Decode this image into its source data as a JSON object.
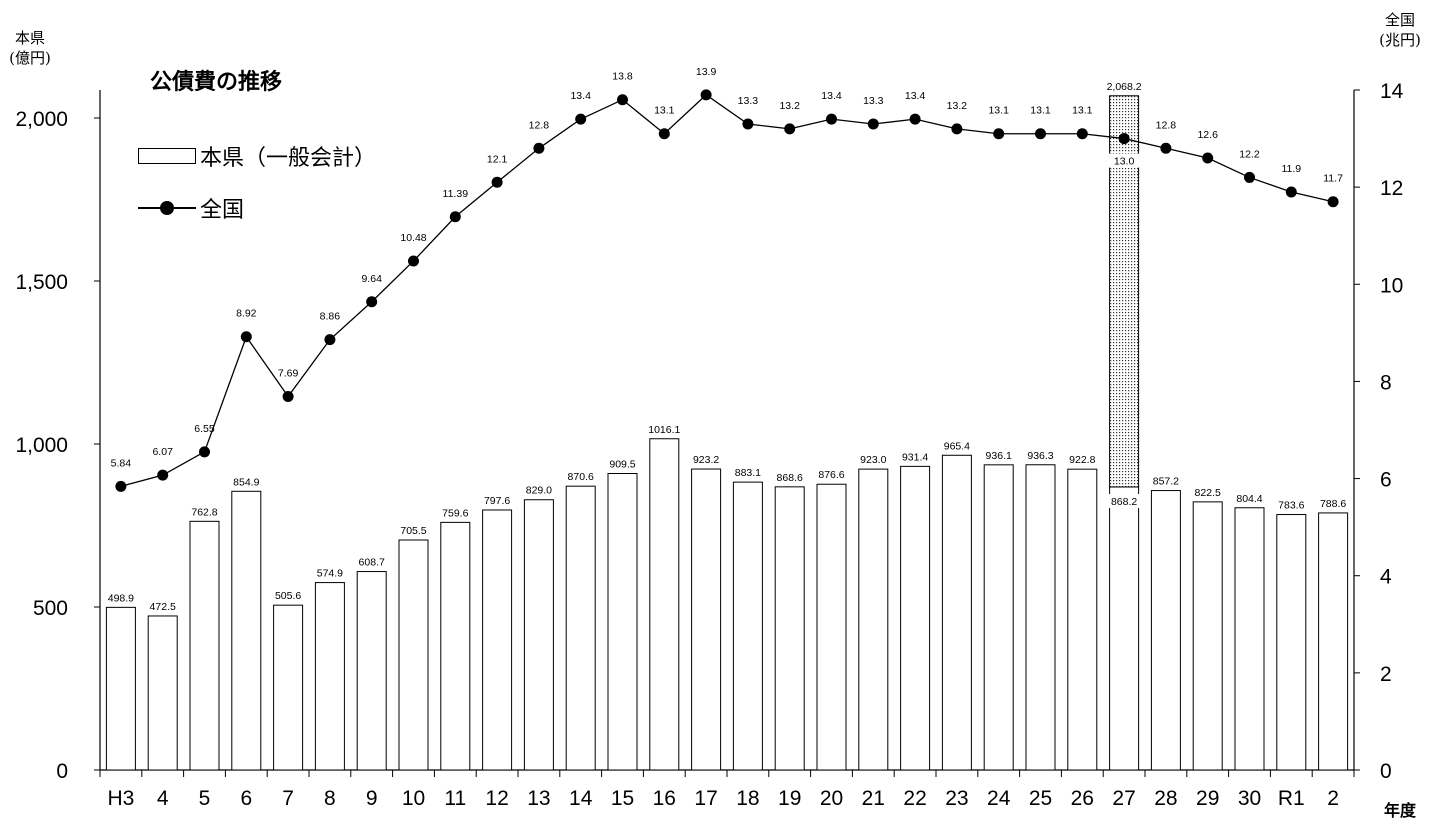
{
  "chart_data": {
    "type": "bar+line",
    "title": "公債費の推移",
    "left_axis_label": "本県\n(億円)",
    "right_axis_label": "全国\n(兆円)",
    "xlabel": "年度",
    "categories": [
      "H3",
      "4",
      "5",
      "6",
      "7",
      "8",
      "9",
      "10",
      "11",
      "12",
      "13",
      "14",
      "15",
      "16",
      "17",
      "18",
      "19",
      "20",
      "21",
      "22",
      "23",
      "24",
      "25",
      "26",
      "27",
      "28",
      "29",
      "30",
      "R1",
      "2"
    ],
    "left_ylim": [
      0,
      2000
    ],
    "left_ticks": [
      {
        "value": 0,
        "label": "0"
      },
      {
        "value": 500,
        "label": "500"
      },
      {
        "value": 1000,
        "label": "1,000"
      },
      {
        "value": 1500,
        "label": "1,500"
      },
      {
        "value": 2000,
        "label": "2,000"
      }
    ],
    "right_ylim": [
      0,
      14
    ],
    "right_ticks": [
      {
        "value": 0,
        "label": "0"
      },
      {
        "value": 2,
        "label": "2"
      },
      {
        "value": 4,
        "label": "4"
      },
      {
        "value": 6,
        "label": "6"
      },
      {
        "value": 8,
        "label": "8"
      },
      {
        "value": 10,
        "label": "10"
      },
      {
        "value": 12,
        "label": "12"
      },
      {
        "value": 14,
        "label": "14"
      }
    ],
    "bar_series": {
      "name": "本県（一般会計）",
      "values": [
        498.9,
        472.5,
        762.8,
        854.9,
        505.6,
        574.9,
        608.7,
        705.5,
        759.6,
        797.6,
        829.0,
        870.6,
        909.5,
        1016.1,
        923.2,
        883.1,
        868.6,
        876.6,
        923.0,
        931.4,
        965.4,
        936.1,
        936.3,
        922.8,
        868.2,
        857.2,
        822.5,
        804.4,
        783.6,
        788.6
      ],
      "labels": [
        "498.9",
        "472.5",
        "762.8",
        "854.9",
        "505.6",
        "574.9",
        "608.7",
        "705.5",
        "759.6",
        "797.6",
        "829.0",
        "870.6",
        "909.5",
        "1016.1",
        "923.2",
        "883.1",
        "868.6",
        "876.6",
        "923.0",
        "931.4",
        "965.4",
        "936.1",
        "936.3",
        "922.8",
        "868.2",
        "857.2",
        "822.5",
        "804.4",
        "783.6",
        "788.6"
      ]
    },
    "stacked_extra": {
      "category": "27",
      "total": 2068.2,
      "total_label": "2,068.2",
      "pattern": "dotted"
    },
    "line_series": {
      "name": "全国",
      "values": [
        5.84,
        6.07,
        6.55,
        8.92,
        7.69,
        8.86,
        9.64,
        10.48,
        11.39,
        12.1,
        12.8,
        13.4,
        13.8,
        13.1,
        13.9,
        13.3,
        13.2,
        13.4,
        13.3,
        13.4,
        13.2,
        13.1,
        13.1,
        13.1,
        13.0,
        12.8,
        12.6,
        12.2,
        11.9,
        11.7
      ],
      "labels": [
        "5.84",
        "6.07",
        "6.55",
        "8.92",
        "7.69",
        "8.86",
        "9.64",
        "10.48",
        "11.39",
        "12.1",
        "12.8",
        "13.4",
        "13.8",
        "13.1",
        "13.9",
        "13.3",
        "13.2",
        "13.4",
        "13.3",
        "13.4",
        "13.2",
        "13.1",
        "13.1",
        "13.1",
        "13.0",
        "12.8",
        "12.6",
        "12.2",
        "11.9",
        "11.7"
      ]
    },
    "legend": {
      "bar_label": "本県（一般会計）",
      "line_label": "全国",
      "placement": "top-left"
    }
  }
}
